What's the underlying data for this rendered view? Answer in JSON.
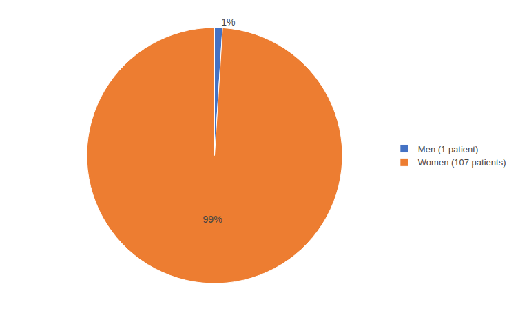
{
  "chart_data": {
    "type": "pie",
    "categories": [
      "Men (1 patient)",
      "Women (107 patients)"
    ],
    "values": [
      1,
      99
    ],
    "value_labels": [
      "1%",
      "99%"
    ],
    "data_labels": true,
    "colors": [
      "#4472C4",
      "#ED7D31"
    ],
    "legend": "right"
  }
}
